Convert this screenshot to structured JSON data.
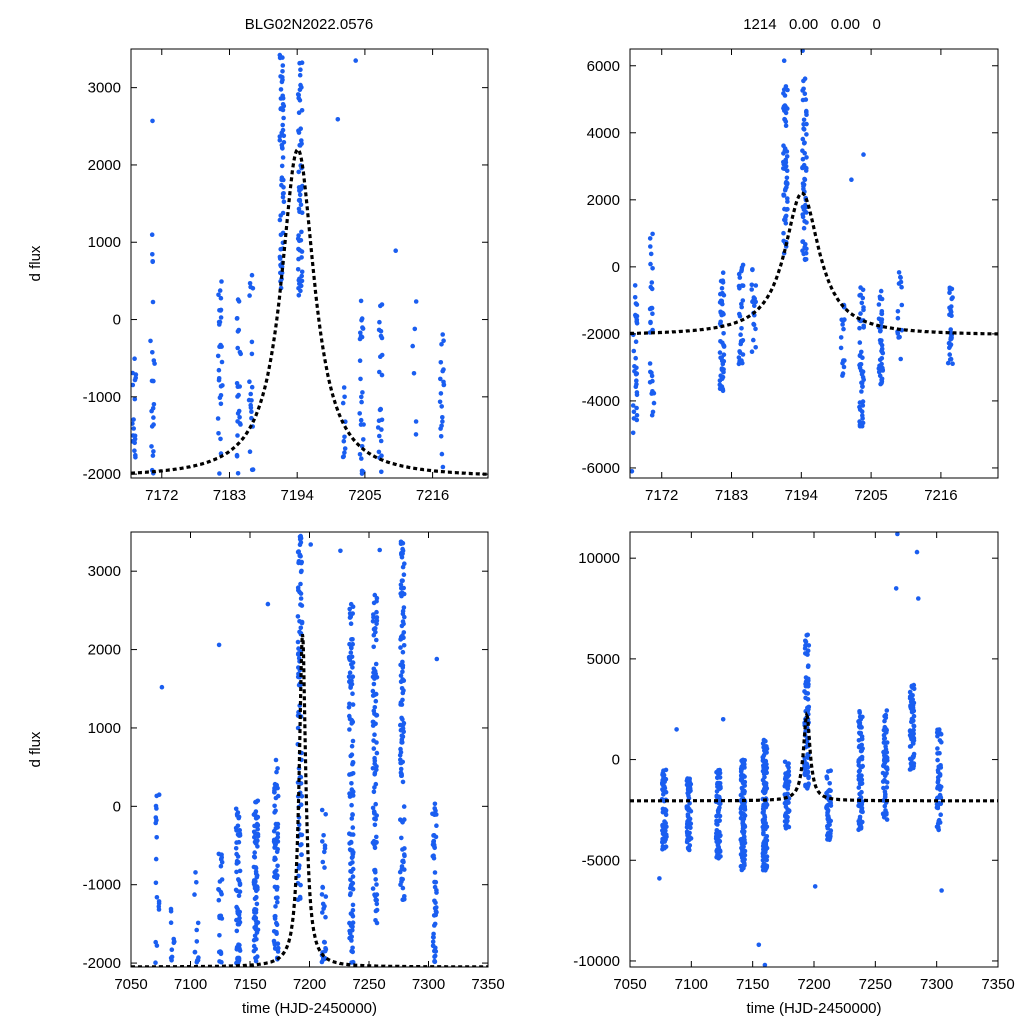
{
  "figure": {
    "title_left": "BLG02N2022.0576",
    "title_right": "1214   0.00   0.00   0"
  },
  "colors": {
    "points": "#1a5ef0",
    "model": "#000000",
    "frame": "#000000"
  },
  "chart_data": [
    {
      "type": "scatter",
      "panel": "top-left",
      "title": "BLG02N2022.0576",
      "xlabel": "",
      "ylabel": "d flux",
      "xlim": [
        7167,
        7225
      ],
      "ylim": [
        -2050,
        3500
      ],
      "xticks": [
        7172,
        7183,
        7194,
        7205,
        7216
      ],
      "yticks": [
        -2000,
        -1000,
        0,
        1000,
        2000,
        3000
      ],
      "model": {
        "t0": 7194.1,
        "tau": 3.3,
        "peak": 2200,
        "baseline": -2050
      },
      "clusters": [
        {
          "t": 7167.5,
          "lo": -2000,
          "hi": -500,
          "n": 18
        },
        {
          "t": 7170.5,
          "lo": -2000,
          "hi": 1300,
          "n": 22
        },
        {
          "t": 7181.5,
          "lo": -2000,
          "hi": 500,
          "n": 30
        },
        {
          "t": 7184.5,
          "lo": -2000,
          "hi": 300,
          "n": 24
        },
        {
          "t": 7186.5,
          "lo": -2000,
          "hi": 600,
          "n": 20
        },
        {
          "t": 7191.5,
          "lo": 400,
          "hi": 3450,
          "n": 60
        },
        {
          "t": 7194.5,
          "lo": 300,
          "hi": 3450,
          "n": 60
        },
        {
          "t": 7201.5,
          "lo": -1800,
          "hi": -800,
          "n": 10
        },
        {
          "t": 7204.5,
          "lo": -2000,
          "hi": 300,
          "n": 26
        },
        {
          "t": 7207.5,
          "lo": -2000,
          "hi": 200,
          "n": 24
        },
        {
          "t": 7213.0,
          "lo": -1500,
          "hi": 300,
          "n": 6
        },
        {
          "t": 7217.5,
          "lo": -2000,
          "hi": -100,
          "n": 20
        }
      ],
      "outliers": [
        [
          7170.5,
          2570
        ],
        [
          7203.5,
          3350
        ],
        [
          7200.6,
          2590
        ],
        [
          7210.0,
          890
        ]
      ]
    },
    {
      "type": "scatter",
      "panel": "top-right",
      "title": "1214   0.00   0.00   0",
      "xlabel": "",
      "ylabel": "",
      "xlim": [
        7167,
        7225
      ],
      "ylim": [
        -6300,
        6500
      ],
      "xticks": [
        7172,
        7183,
        7194,
        7205,
        7216
      ],
      "yticks": [
        -6000,
        -4000,
        -2000,
        0,
        2000,
        4000,
        6000
      ],
      "model": {
        "t0": 7194.1,
        "tau": 3.3,
        "peak": 2200,
        "baseline": -2050
      },
      "clusters": [
        {
          "t": 7167.8,
          "lo": -4600,
          "hi": -400,
          "n": 30
        },
        {
          "t": 7170.5,
          "lo": -4600,
          "hi": 1400,
          "n": 30
        },
        {
          "t": 7181.5,
          "lo": -3700,
          "hi": 0,
          "n": 50
        },
        {
          "t": 7184.5,
          "lo": -3000,
          "hi": 200,
          "n": 30
        },
        {
          "t": 7186.5,
          "lo": -2600,
          "hi": 0,
          "n": 20
        },
        {
          "t": 7191.5,
          "lo": 400,
          "hi": 5600,
          "n": 60
        },
        {
          "t": 7194.5,
          "lo": 200,
          "hi": 5800,
          "n": 60
        },
        {
          "t": 7200.5,
          "lo": -3300,
          "hi": -1000,
          "n": 15
        },
        {
          "t": 7203.5,
          "lo": -4800,
          "hi": -600,
          "n": 50
        },
        {
          "t": 7206.5,
          "lo": -3500,
          "hi": -600,
          "n": 40
        },
        {
          "t": 7209.5,
          "lo": -2800,
          "hi": 300,
          "n": 15
        },
        {
          "t": 7217.5,
          "lo": -2900,
          "hi": -400,
          "n": 30
        }
      ],
      "outliers": [
        [
          7167.5,
          -4950
        ],
        [
          7167.3,
          -6100
        ],
        [
          7194.2,
          6450
        ],
        [
          7191.3,
          6150
        ],
        [
          7203.8,
          3350
        ],
        [
          7201.9,
          2600
        ]
      ]
    },
    {
      "type": "scatter",
      "panel": "bottom-left",
      "title": "",
      "xlabel": "time (HJD-2450000)",
      "ylabel": "d flux",
      "xlim": [
        7050,
        7350
      ],
      "ylim": [
        -2050,
        3500
      ],
      "xticks": [
        7050,
        7100,
        7150,
        7200,
        7250,
        7300,
        7350
      ],
      "yticks": [
        -2000,
        -1000,
        0,
        1000,
        2000,
        3000
      ],
      "model": {
        "t0": 7194.1,
        "tau": 3.3,
        "peak": 2200,
        "baseline": -2050
      },
      "clusters": [
        {
          "t": 7072,
          "lo": -2000,
          "hi": 500,
          "n": 18
        },
        {
          "t": 7085,
          "lo": -2000,
          "hi": -1200,
          "n": 10
        },
        {
          "t": 7105,
          "lo": -2000,
          "hi": -800,
          "n": 12
        },
        {
          "t": 7125,
          "lo": -2000,
          "hi": -600,
          "n": 25
        },
        {
          "t": 7140,
          "lo": -2000,
          "hi": 0,
          "n": 60
        },
        {
          "t": 7155,
          "lo": -2000,
          "hi": 200,
          "n": 80
        },
        {
          "t": 7172,
          "lo": -2000,
          "hi": 600,
          "n": 70
        },
        {
          "t": 7192,
          "lo": -1200,
          "hi": 3450,
          "n": 90
        },
        {
          "t": 7212,
          "lo": -2000,
          "hi": 0,
          "n": 30
        },
        {
          "t": 7235,
          "lo": -2000,
          "hi": 2600,
          "n": 120
        },
        {
          "t": 7255,
          "lo": -1500,
          "hi": 2800,
          "n": 90
        },
        {
          "t": 7278,
          "lo": -1200,
          "hi": 3400,
          "n": 110
        },
        {
          "t": 7305,
          "lo": -2000,
          "hi": 100,
          "n": 50
        }
      ],
      "outliers": [
        [
          7076,
          1520
        ],
        [
          7124,
          2060
        ],
        [
          7165,
          2580
        ],
        [
          7201,
          3340
        ],
        [
          7259,
          3270
        ],
        [
          7226,
          3260
        ],
        [
          7307,
          1880
        ]
      ]
    },
    {
      "type": "scatter",
      "panel": "bottom-right",
      "title": "",
      "xlabel": "time (HJD-2450000)",
      "ylabel": "",
      "xlim": [
        7050,
        7350
      ],
      "ylim": [
        -10300,
        11300
      ],
      "xticks": [
        7050,
        7100,
        7150,
        7200,
        7250,
        7300,
        7350
      ],
      "yticks": [
        -10000,
        -5000,
        0,
        5000,
        10000
      ],
      "model": {
        "t0": 7194.1,
        "tau": 3.3,
        "peak": 2200,
        "baseline": -2050
      },
      "clusters": [
        {
          "t": 7078,
          "lo": -4500,
          "hi": -500,
          "n": 60
        },
        {
          "t": 7098,
          "lo": -4500,
          "hi": -800,
          "n": 70
        },
        {
          "t": 7122,
          "lo": -5000,
          "hi": -500,
          "n": 80
        },
        {
          "t": 7142,
          "lo": -5500,
          "hi": 0,
          "n": 120
        },
        {
          "t": 7160,
          "lo": -5500,
          "hi": 1000,
          "n": 120
        },
        {
          "t": 7178,
          "lo": -3500,
          "hi": 0,
          "n": 60
        },
        {
          "t": 7194,
          "lo": -1500,
          "hi": 6200,
          "n": 80
        },
        {
          "t": 7212,
          "lo": -4000,
          "hi": -500,
          "n": 50
        },
        {
          "t": 7238,
          "lo": -3500,
          "hi": 2500,
          "n": 80
        },
        {
          "t": 7258,
          "lo": -3000,
          "hi": 2500,
          "n": 60
        },
        {
          "t": 7280,
          "lo": -500,
          "hi": 4000,
          "n": 70
        },
        {
          "t": 7302,
          "lo": -3500,
          "hi": 1500,
          "n": 50
        }
      ],
      "outliers": [
        [
          7074,
          -5900
        ],
        [
          7155,
          -9200
        ],
        [
          7160,
          -10200
        ],
        [
          7268,
          11200
        ],
        [
          7284,
          10300
        ],
        [
          7267,
          8500
        ],
        [
          7285,
          8000
        ],
        [
          7304,
          -6500
        ],
        [
          7088,
          1500
        ],
        [
          7126,
          2000
        ],
        [
          7201,
          -6300
        ]
      ]
    }
  ]
}
